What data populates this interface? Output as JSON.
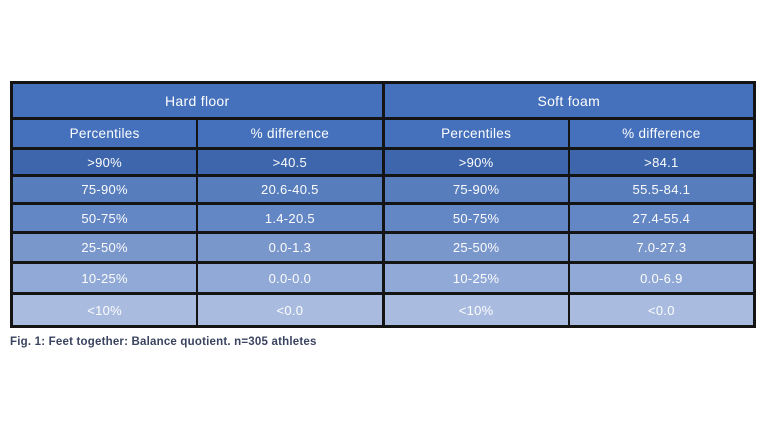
{
  "page": {
    "background": "#ffffff"
  },
  "figure": {
    "caption": "Fig. 1: Feet together: Balance quotient. n=305 athletes",
    "caption_color": "#3a4460"
  },
  "table": {
    "border_color": "#141414",
    "header_bg": "#4571bc",
    "text_color": "#fdfdfd",
    "groups": [
      {
        "label": "Hard floor"
      },
      {
        "label": "Soft foam"
      }
    ],
    "column_headers": [
      "Percentiles",
      "% difference",
      "Percentiles",
      "% difference"
    ],
    "rows": [
      {
        "bg": "#3e66ac",
        "cells": [
          ">90%",
          ">40.5",
          ">90%",
          ">84.1"
        ]
      },
      {
        "bg": "#577dbd",
        "cells": [
          "75-90%",
          "20.6-40.5",
          "75-90%",
          "55.5-84.1"
        ]
      },
      {
        "bg": "#6387c4",
        "cells": [
          "50-75%",
          "1.4-20.5",
          "50-75%",
          "27.4-55.4"
        ]
      },
      {
        "bg": "#7a97cc",
        "cells": [
          "25-50%",
          "0.0-1.3",
          "25-50%",
          "7.0-27.3"
        ]
      },
      {
        "bg": "#90a9d6",
        "cells": [
          "10-25%",
          "0.0-0.0",
          "10-25%",
          "0.0-6.9"
        ]
      },
      {
        "bg": "#a9bce0",
        "cells": [
          "<10%",
          "<0.0",
          "<10%",
          "<0.0"
        ]
      }
    ]
  },
  "chart_data": {
    "type": "table",
    "title": "Fig. 1: Feet together: Balance quotient. n=305 athletes",
    "sample_size": 305,
    "groups": [
      {
        "name": "Hard floor",
        "columns": [
          "Percentiles",
          "% difference"
        ],
        "rows": [
          [
            ">90%",
            ">40.5"
          ],
          [
            "75-90%",
            "20.6-40.5"
          ],
          [
            "50-75%",
            "1.4-20.5"
          ],
          [
            "25-50%",
            "0.0-1.3"
          ],
          [
            "10-25%",
            "0.0-0.0"
          ],
          [
            "<10%",
            "<0.0"
          ]
        ]
      },
      {
        "name": "Soft foam",
        "columns": [
          "Percentiles",
          "% difference"
        ],
        "rows": [
          [
            ">90%",
            ">84.1"
          ],
          [
            "75-90%",
            "55.5-84.1"
          ],
          [
            "50-75%",
            "27.4-55.4"
          ],
          [
            "25-50%",
            "7.0-27.3"
          ],
          [
            "10-25%",
            "0.0-6.9"
          ],
          [
            "<10%",
            "<0.0"
          ]
        ]
      }
    ]
  }
}
